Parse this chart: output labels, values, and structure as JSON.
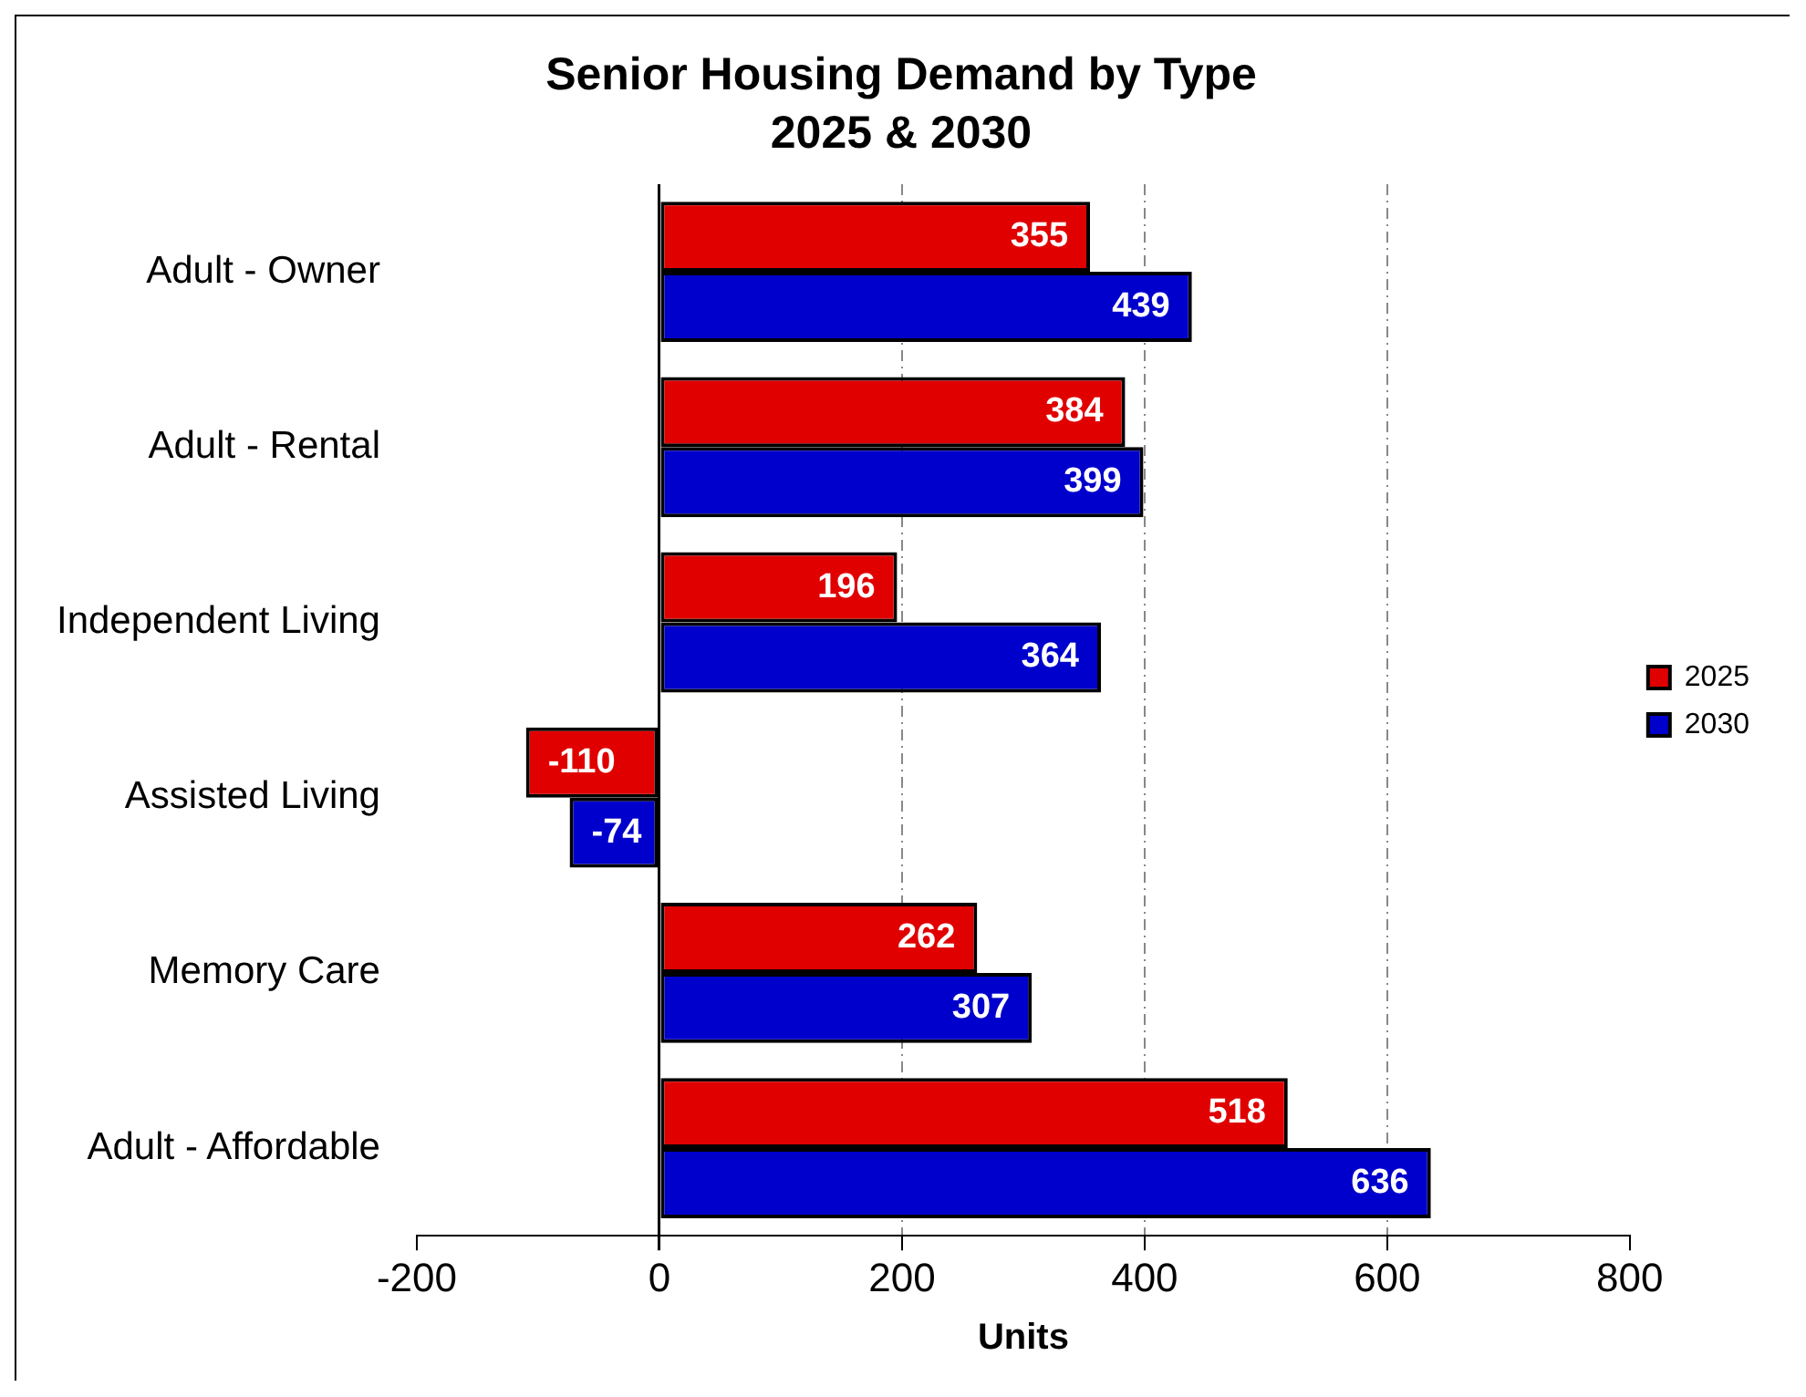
{
  "chart_data": {
    "type": "bar",
    "orientation": "horizontal",
    "title": "Senior Housing Demand by Type",
    "subtitle": "2025 & 2030",
    "xlabel": "Units",
    "categories": [
      "Adult - Owner",
      "Adult - Rental",
      "Independent Living",
      "Assisted Living",
      "Memory Care",
      "Adult - Affordable"
    ],
    "series": [
      {
        "name": "2025",
        "color": "#e00000",
        "values": [
          355,
          384,
          196,
          -110,
          262,
          518
        ]
      },
      {
        "name": "2030",
        "color": "#0000cc",
        "values": [
          439,
          399,
          364,
          -74,
          307,
          636
        ]
      }
    ],
    "xlim": [
      -200,
      800
    ],
    "xticks": [
      -200,
      0,
      200,
      400,
      600,
      800
    ],
    "grid": "x",
    "legend": "right",
    "data_labels": true
  }
}
